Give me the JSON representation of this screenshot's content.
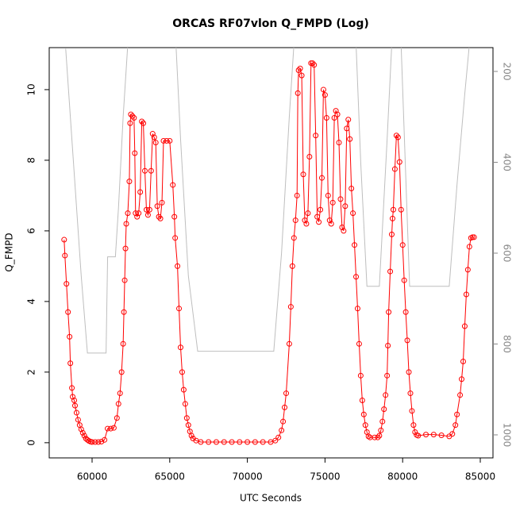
{
  "chart_data": {
    "type": "line",
    "title": "ORCAS RF07vlon Q_FMPD (Log)",
    "x_label": "UTC Seconds",
    "y_label": "Q_FMPD",
    "xlim": [
      57239,
      85818
    ],
    "xticks": [
      60000,
      65000,
      70000,
      75000,
      80000,
      85000
    ],
    "ylim": [
      -0.43,
      11.19
    ],
    "yticks": [
      0,
      2,
      4,
      6,
      8,
      10
    ],
    "y2lim": [
      1050.7,
      147.6
    ],
    "y2ticks": [
      200,
      400,
      600,
      800,
      1000
    ],
    "series": [
      {
        "color": "#ff0000",
        "marker": "circle",
        "x": [
          58200,
          58250,
          58350,
          58450,
          58550,
          58600,
          58700,
          58750,
          58850,
          58900,
          59000,
          59100,
          59200,
          59300,
          59400,
          59500,
          59600,
          59700,
          59800,
          59900,
          60000,
          60200,
          60400,
          60600,
          60800,
          61000,
          61200,
          61400,
          61600,
          61700,
          61800,
          61900,
          62000,
          62050,
          62100,
          62150,
          62200,
          62300,
          62400,
          62450,
          62500,
          62600,
          62700,
          62750,
          62800,
          62900,
          63000,
          63100,
          63200,
          63300,
          63400,
          63500,
          63600,
          63700,
          63800,
          63900,
          64000,
          64100,
          64200,
          64300,
          64400,
          64500,
          64600,
          64800,
          65000,
          65200,
          65300,
          65350,
          65500,
          65600,
          65700,
          65800,
          65900,
          66000,
          66100,
          66200,
          66300,
          66400,
          66500,
          66700,
          67000,
          67500,
          68000,
          68500,
          69000,
          69500,
          70000,
          70500,
          71000,
          71500,
          71800,
          72000,
          72200,
          72300,
          72400,
          72500,
          72700,
          72800,
          72900,
          73000,
          73100,
          73200,
          73250,
          73300,
          73400,
          73500,
          73600,
          73700,
          73800,
          73900,
          74000,
          74100,
          74200,
          74300,
          74400,
          74500,
          74600,
          74700,
          74800,
          74900,
          75000,
          75100,
          75200,
          75300,
          75400,
          75500,
          75600,
          75700,
          75800,
          75900,
          76000,
          76100,
          76200,
          76300,
          76400,
          76500,
          76600,
          76700,
          76800,
          76900,
          77000,
          77100,
          77200,
          77300,
          77400,
          77500,
          77600,
          77700,
          77800,
          77900,
          78200,
          78400,
          78500,
          78600,
          78700,
          78800,
          78900,
          79000,
          79050,
          79100,
          79200,
          79300,
          79350,
          79400,
          79500,
          79600,
          79700,
          79800,
          79900,
          80000,
          80100,
          80200,
          80300,
          80400,
          80500,
          80600,
          80700,
          80800,
          80900,
          81000,
          81500,
          82000,
          82500,
          83000,
          83200,
          83400,
          83500,
          83700,
          83800,
          83900,
          84000,
          84100,
          84200,
          84300,
          84400,
          84500,
          84600
        ],
        "values": [
          5.75,
          5.3,
          4.5,
          3.7,
          3.0,
          2.25,
          1.55,
          1.3,
          1.2,
          1.05,
          0.85,
          0.65,
          0.5,
          0.38,
          0.28,
          0.2,
          0.12,
          0.08,
          0.05,
          0.03,
          0.02,
          0.02,
          0.02,
          0.03,
          0.08,
          0.4,
          0.4,
          0.42,
          0.7,
          1.1,
          1.4,
          2.0,
          2.8,
          3.7,
          4.6,
          5.5,
          6.2,
          6.5,
          7.4,
          9.05,
          9.3,
          9.25,
          9.2,
          8.2,
          6.5,
          6.4,
          6.5,
          7.1,
          9.1,
          9.05,
          7.7,
          6.6,
          6.45,
          6.6,
          7.7,
          8.75,
          8.65,
          8.5,
          6.7,
          6.4,
          6.35,
          6.8,
          8.55,
          8.55,
          8.55,
          7.3,
          6.4,
          5.8,
          5.0,
          3.8,
          2.7,
          2.0,
          1.5,
          1.1,
          0.7,
          0.5,
          0.32,
          0.2,
          0.12,
          0.06,
          0.02,
          0.02,
          0.02,
          0.02,
          0.02,
          0.02,
          0.02,
          0.02,
          0.02,
          0.02,
          0.06,
          0.15,
          0.35,
          0.6,
          1.0,
          1.4,
          2.8,
          3.85,
          5.0,
          5.8,
          6.3,
          7.0,
          9.9,
          10.55,
          10.6,
          10.4,
          7.6,
          6.3,
          6.2,
          6.5,
          8.1,
          10.75,
          10.75,
          10.7,
          8.7,
          6.4,
          6.25,
          6.6,
          7.5,
          10.0,
          9.85,
          9.2,
          7.0,
          6.3,
          6.2,
          6.8,
          9.2,
          9.4,
          9.3,
          8.5,
          6.9,
          6.1,
          6.0,
          6.7,
          8.9,
          9.15,
          8.6,
          7.2,
          6.5,
          5.6,
          4.7,
          3.8,
          2.8,
          1.9,
          1.2,
          0.8,
          0.5,
          0.3,
          0.18,
          0.15,
          0.15,
          0.15,
          0.2,
          0.35,
          0.6,
          0.95,
          1.35,
          1.9,
          2.75,
          3.7,
          4.85,
          5.9,
          6.35,
          6.6,
          7.75,
          8.7,
          8.65,
          7.95,
          6.6,
          5.6,
          4.6,
          3.7,
          2.9,
          2.0,
          1.4,
          0.9,
          0.5,
          0.3,
          0.22,
          0.2,
          0.23,
          0.23,
          0.21,
          0.18,
          0.25,
          0.5,
          0.8,
          1.35,
          1.8,
          2.3,
          3.3,
          4.2,
          4.9,
          5.55,
          5.8,
          5.82,
          5.82
        ]
      },
      {
        "color": "#bebebe",
        "axis": "y2",
        "x": [
          58300,
          58800,
          59300,
          59700,
          60700,
          60900,
          61000,
          61500,
          61700,
          62000,
          62300,
          65400,
          65700,
          66200,
          66800,
          71700,
          72200,
          72700,
          73000,
          77000,
          77300,
          77700,
          78500,
          79000,
          79300,
          79900,
          80450,
          83000,
          83500,
          84000,
          84300
        ],
        "values": [
          150,
          400,
          650,
          820,
          820,
          820,
          608,
          608,
          500,
          300,
          140,
          140,
          350,
          650,
          816,
          816,
          600,
          300,
          140,
          140,
          400,
          673,
          673,
          350,
          140,
          140,
          673,
          673,
          450,
          250,
          140
        ]
      }
    ]
  }
}
